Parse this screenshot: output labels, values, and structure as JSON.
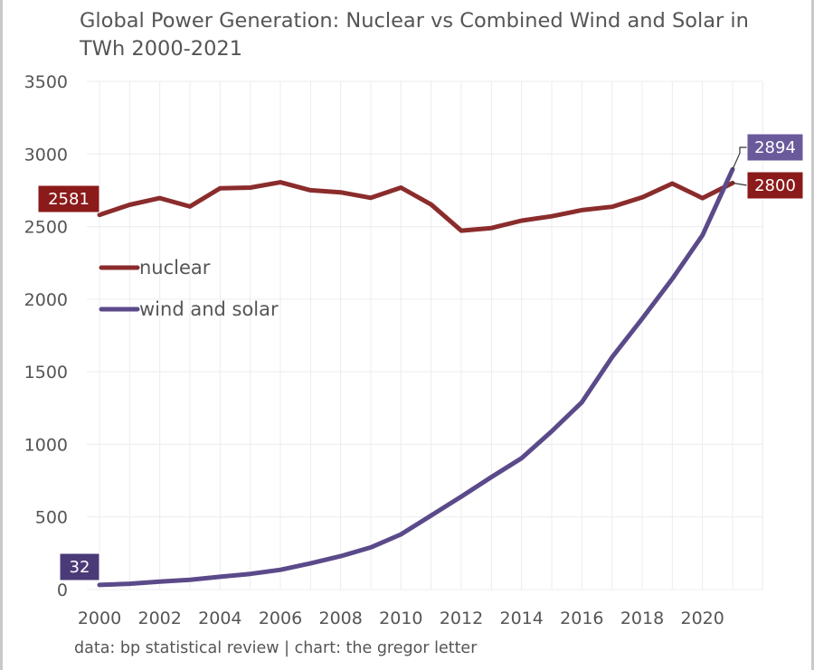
{
  "chart_data": {
    "type": "line",
    "title": "Global Power Generation: Nuclear vs Combined Wind and Solar in TWh 2000-2021",
    "xlabel": "",
    "ylabel": "",
    "source_note": "data: bp statistical review | chart: the gregor letter",
    "x": [
      2000,
      2001,
      2002,
      2003,
      2004,
      2005,
      2006,
      2007,
      2008,
      2009,
      2010,
      2011,
      2012,
      2013,
      2014,
      2015,
      2016,
      2017,
      2018,
      2019,
      2020,
      2021
    ],
    "xlim": [
      2000,
      2021
    ],
    "ylim": [
      0,
      3500
    ],
    "yticks": [
      0,
      500,
      1000,
      1500,
      2000,
      2500,
      3000,
      3500
    ],
    "xticks": [
      2000,
      2002,
      2004,
      2006,
      2008,
      2010,
      2012,
      2014,
      2016,
      2018,
      2020
    ],
    "grid": true,
    "legend_position": "upper-left",
    "series": [
      {
        "name": "nuclear",
        "color": "#8b2c2c",
        "values": [
          2581,
          2650,
          2696,
          2638,
          2764,
          2768,
          2805,
          2750,
          2736,
          2698,
          2768,
          2652,
          2472,
          2490,
          2541,
          2571,
          2613,
          2636,
          2701,
          2796,
          2696,
          2800
        ]
      },
      {
        "name": "wind and solar",
        "color": "#5b4a8a",
        "values": [
          32,
          40,
          55,
          67,
          88,
          108,
          136,
          180,
          230,
          290,
          380,
          510,
          640,
          775,
          905,
          1090,
          1290,
          1600,
          1865,
          2140,
          2440,
          2894
        ]
      }
    ],
    "annotations": [
      {
        "text": "2581",
        "series": "nuclear",
        "x": 2000,
        "value": 2581,
        "color": "#8b1a1a"
      },
      {
        "text": "32",
        "series": "wind and solar",
        "x": 2000,
        "value": 32,
        "color": "#4b3a78"
      },
      {
        "text": "2894",
        "series": "wind and solar",
        "x": 2021,
        "value": 2894,
        "color": "#6a5a9c"
      },
      {
        "text": "2800",
        "series": "nuclear",
        "x": 2021,
        "value": 2800,
        "color": "#8b1a1a"
      }
    ]
  }
}
